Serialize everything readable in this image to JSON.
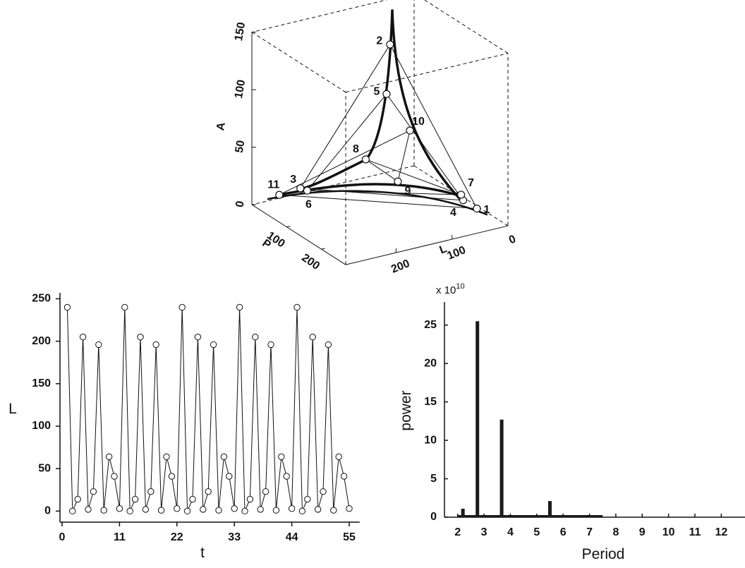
{
  "chart_data": [
    {
      "type": "scatter3d",
      "axis_labels": {
        "L": "L",
        "P": "P",
        "A": "A"
      },
      "Llim": [
        0,
        290
      ],
      "Plim": [
        0,
        270
      ],
      "Alim": [
        0,
        150
      ],
      "Lticks": [
        0,
        100,
        200
      ],
      "Pticks": [
        100,
        200
      ],
      "Aticks": [
        0,
        50,
        100,
        150
      ],
      "points": [
        {
          "label": "1",
          "L": 17,
          "P": 208,
          "A": 5
        },
        {
          "label": "2",
          "L": 112,
          "P": 111,
          "A": 140
        },
        {
          "label": "3",
          "L": 217,
          "P": 22,
          "A": 10
        },
        {
          "label": "4",
          "L": 18,
          "P": 170,
          "A": 5
        },
        {
          "label": "5",
          "L": 112,
          "P": 101,
          "A": 95
        },
        {
          "label": "6",
          "L": 201,
          "P": 16,
          "A": 5
        },
        {
          "label": "7",
          "L": 21,
          "P": 169,
          "A": 10
        },
        {
          "label": "8",
          "L": 120,
          "P": 54,
          "A": 30
        },
        {
          "label": "9",
          "L": 88,
          "P": 95,
          "A": 15
        },
        {
          "label": "10",
          "L": 74,
          "P": 107,
          "A": 60
        },
        {
          "label": "11",
          "L": 246,
          "P": 8,
          "A": 5
        }
      ]
    },
    {
      "type": "line",
      "x_label": "t",
      "y_label": "L",
      "x": [
        1,
        2,
        3,
        4,
        5,
        6,
        7,
        8,
        9,
        10,
        11,
        12,
        13,
        14,
        15,
        16,
        17,
        18,
        19,
        20,
        21,
        22,
        23,
        24,
        25,
        26,
        27,
        28,
        29,
        30,
        31,
        32,
        33,
        34,
        35,
        36,
        37,
        38,
        39,
        40,
        41,
        42,
        43,
        44,
        45,
        46,
        47,
        48,
        49,
        50,
        51,
        52,
        53,
        54,
        55
      ],
      "values": [
        240,
        0,
        14,
        205,
        2,
        23,
        196,
        1,
        64,
        41,
        3,
        240,
        0,
        14,
        205,
        2,
        23,
        196,
        1,
        64,
        41,
        3,
        240,
        0,
        14,
        205,
        2,
        23,
        196,
        1,
        64,
        41,
        3,
        240,
        0,
        14,
        205,
        2,
        23,
        196,
        1,
        64,
        41,
        3,
        240,
        0,
        14,
        205,
        2,
        23,
        196,
        1,
        64,
        41,
        3
      ],
      "xlim": [
        0,
        57
      ],
      "ylim": [
        -13,
        257
      ],
      "xticks": [
        0,
        11,
        22,
        33,
        44,
        55
      ],
      "yticks": [
        0,
        50,
        100,
        150,
        200,
        250
      ],
      "color": "#111"
    },
    {
      "type": "bar",
      "x_label": "Period",
      "y_label": "power",
      "multiplier": "x 10",
      "multiplier_exponent": "10",
      "x": [
        2.2,
        2.75,
        3.67,
        5.5
      ],
      "values": [
        1.1,
        25.5,
        12.7,
        2.1
      ],
      "xlim": [
        1.5,
        12.9
      ],
      "ylim": [
        0,
        28
      ],
      "xticks": [
        2,
        3,
        4,
        5,
        6,
        7,
        8,
        9,
        10,
        11,
        12
      ],
      "yticks": [
        0,
        5,
        10,
        15,
        20,
        25
      ],
      "color": "#1a1a1a"
    }
  ]
}
